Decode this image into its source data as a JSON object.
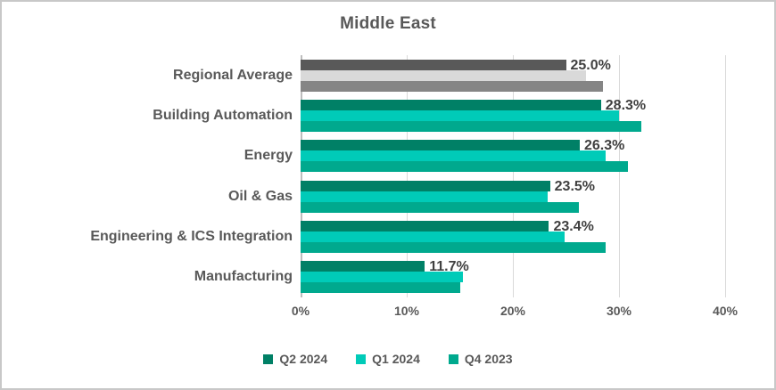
{
  "chart_data": {
    "type": "bar",
    "orientation": "horizontal",
    "title": "Middle East",
    "categories": [
      "Regional Average",
      "Building Automation",
      "Energy",
      "Oil & Gas",
      "Engineering & ICS Integration",
      "Manufacturing"
    ],
    "series": [
      {
        "name": "Q2 2024",
        "color": "#008066",
        "regional_average_color": "#595959",
        "values": [
          25.0,
          28.3,
          26.3,
          23.5,
          23.4,
          11.7
        ],
        "data_labels": [
          "25.0%",
          "28.3%",
          "26.3%",
          "23.5%",
          "23.4%",
          "11.7%"
        ]
      },
      {
        "name": "Q1 2024",
        "color": "#00cbb8",
        "regional_average_color": "#d9d9d9",
        "values": [
          26.9,
          30.0,
          28.7,
          23.3,
          24.9,
          15.3
        ]
      },
      {
        "name": "Q4 2023",
        "color": "#00a98e",
        "regional_average_color": "#858585",
        "values": [
          28.5,
          32.1,
          30.8,
          26.2,
          28.7,
          15.0
        ]
      }
    ],
    "x_axis": {
      "min": 0,
      "max": 40,
      "ticks": [
        "0%",
        "10%",
        "20%",
        "30%",
        "40%"
      ]
    },
    "legend": {
      "position": "bottom",
      "entries": [
        "Q2 2024",
        "Q1 2024",
        "Q4 2023"
      ]
    },
    "grid": true,
    "colors": {
      "text": "#595959",
      "data_label": "#404040",
      "gridline": "#d9d9d9",
      "axis_line": "#bdbdbd",
      "frame_border": "#c8c8c8",
      "background": "#ffffff"
    }
  }
}
